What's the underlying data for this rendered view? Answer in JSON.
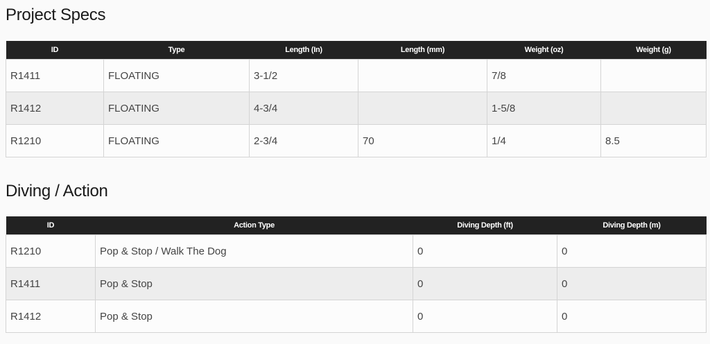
{
  "specs": {
    "title": "Project Specs",
    "headers": [
      "ID",
      "Type",
      "Length (In)",
      "Length (mm)",
      "Weight (oz)",
      "Weight (g)"
    ],
    "rows": [
      [
        "R1411",
        "FLOATING",
        "3-1/2",
        "",
        "7/8",
        ""
      ],
      [
        "R1412",
        "FLOATING",
        "4-3/4",
        "",
        "1-5/8",
        ""
      ],
      [
        "R1210",
        "FLOATING",
        "2-3/4",
        "70",
        "1/4",
        "8.5"
      ]
    ]
  },
  "diving": {
    "title": "Diving / Action",
    "headers": [
      "ID",
      "Action Type",
      "Diving Depth (ft)",
      "Diving Depth (m)"
    ],
    "rows": [
      [
        "R1210",
        "Pop & Stop / Walk The Dog",
        "0",
        "0"
      ],
      [
        "R1411",
        "Pop & Stop",
        "0",
        "0"
      ],
      [
        "R1412",
        "Pop & Stop",
        "0",
        "0"
      ]
    ]
  }
}
